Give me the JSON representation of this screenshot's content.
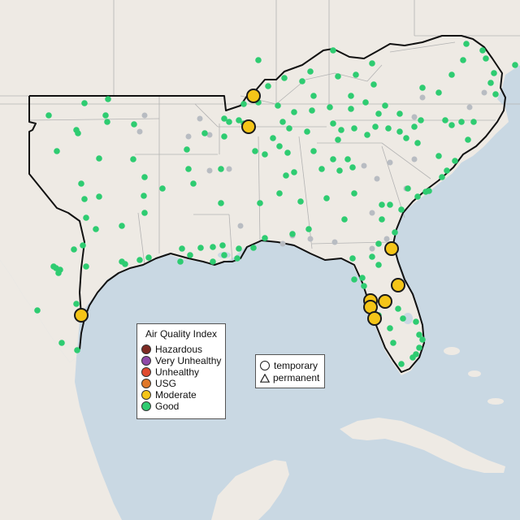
{
  "legend": {
    "title": "Air Quality Index",
    "categories": [
      {
        "label": "Hazardous",
        "color": "#7e2b24"
      },
      {
        "label": "Very Unhealthy",
        "color": "#8f4aa8"
      },
      {
        "label": "Unhealthy",
        "color": "#e04a2e"
      },
      {
        "label": "USG",
        "color": "#e0782a"
      },
      {
        "label": "Moderate",
        "color": "#f5c518"
      },
      {
        "label": "Good",
        "color": "#2ecc71"
      }
    ]
  },
  "type_legend": {
    "temporary": "temporary",
    "permanent": "permanent"
  },
  "colors": {
    "water": "#c9d8e3",
    "land": "#eeeae4",
    "border": "#111111",
    "no_data": "#b8bcc2"
  }
}
